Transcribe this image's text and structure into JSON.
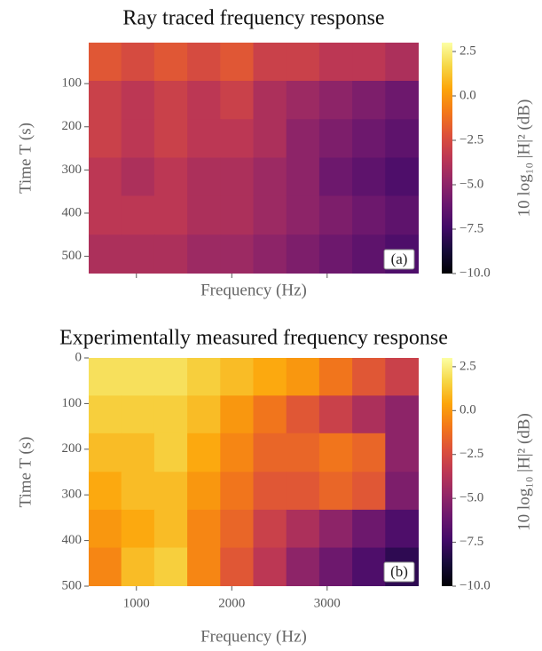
{
  "chart_data": [
    {
      "type": "heatmap",
      "title": "Ray traced frequency response",
      "xlabel": "Frequency (Hz)",
      "ylabel": "Time T (s)",
      "annotation": "(a)",
      "colormap": "inferno",
      "y_inverted": true,
      "xtick_labels": false,
      "xlim": [
        500,
        3960
      ],
      "xticks": [
        1000,
        2000,
        3000
      ],
      "ylim": [
        5,
        540
      ],
      "yticks": [
        100,
        200,
        300,
        400,
        500
      ],
      "x": [
        673,
        1019,
        1365,
        1711,
        2057,
        2403,
        2749,
        3095,
        3441,
        3787
      ],
      "y": [
        50,
        139,
        228,
        317,
        406,
        496
      ],
      "values": [
        [
          -2,
          -2.5,
          -2,
          -2.5,
          -2,
          -3,
          -3,
          -3.5,
          -3.5,
          -4
        ],
        [
          -3,
          -3.5,
          -3,
          -3.5,
          -3,
          -4,
          -4.5,
          -5,
          -5.5,
          -6
        ],
        [
          -3,
          -3.5,
          -3,
          -3.5,
          -3.5,
          -4,
          -5,
          -5.5,
          -6,
          -6.5
        ],
        [
          -3.5,
          -4,
          -3.5,
          -4,
          -4,
          -4.5,
          -5,
          -6,
          -6.5,
          -7
        ],
        [
          -3.5,
          -3.5,
          -3.5,
          -4,
          -4,
          -4.5,
          -5,
          -5.5,
          -6,
          -6.5
        ],
        [
          -4,
          -4,
          -4,
          -4.5,
          -4.5,
          -5,
          -5.5,
          -6,
          -6.5,
          -7
        ]
      ],
      "colorbar": {
        "label": "10 log₁₀ |H|² (dB)",
        "lim": [
          -10,
          3
        ],
        "ticks": [
          2.5,
          {
            "value": 0,
            "label": "0.0"
          },
          {
            "value": -2.5,
            "label": "−2.5"
          },
          {
            "value": -5,
            "label": "−5.0"
          },
          {
            "value": -7.5,
            "label": "−7.5"
          },
          {
            "value": -10,
            "label": "−10.0"
          }
        ]
      }
    },
    {
      "type": "heatmap",
      "title": "Experimentally measured frequency response",
      "xlabel": "Frequency (Hz)",
      "ylabel": "Time T (s)",
      "annotation": "(b)",
      "colormap": "inferno",
      "y_inverted": true,
      "xtick_labels": true,
      "xlim": [
        500,
        3960
      ],
      "xticks": [
        1000,
        2000,
        3000
      ],
      "ylim": [
        0,
        500
      ],
      "yticks": [
        0,
        100,
        200,
        300,
        400,
        500
      ],
      "x": [
        673,
        1019,
        1365,
        1711,
        2057,
        2403,
        2749,
        3095,
        3441,
        3787
      ],
      "y": [
        42,
        125,
        208,
        292,
        375,
        458
      ],
      "values": [
        [
          2,
          2,
          2,
          1.5,
          1,
          0.5,
          0,
          -1,
          -2,
          -3
        ],
        [
          1.5,
          1.5,
          1.5,
          1,
          0,
          -1,
          -2,
          -3,
          -4,
          -5
        ],
        [
          1,
          1,
          1.5,
          0.5,
          -0.5,
          -1.5,
          -1.5,
          -1,
          -1.5,
          -5
        ],
        [
          0.5,
          1,
          1,
          0,
          -1,
          -2,
          -2,
          -1.5,
          -2,
          -5.5
        ],
        [
          0,
          0.5,
          1,
          -0.5,
          -1.5,
          -3,
          -4,
          -5,
          -6,
          -7
        ],
        [
          -0.5,
          1,
          1.5,
          -0.5,
          -2,
          -3.5,
          -5,
          -6,
          -7,
          -8
        ]
      ],
      "colorbar": {
        "label": "10 log₁₀ |H|² (dB)",
        "lim": [
          -10,
          3
        ],
        "ticks": [
          2.5,
          {
            "value": 0,
            "label": "0.0"
          },
          {
            "value": -2.5,
            "label": "−2.5"
          },
          {
            "value": -5,
            "label": "−5.0"
          },
          {
            "value": -7.5,
            "label": "−7.5"
          },
          {
            "value": -10,
            "label": "−10.0"
          }
        ]
      }
    }
  ]
}
